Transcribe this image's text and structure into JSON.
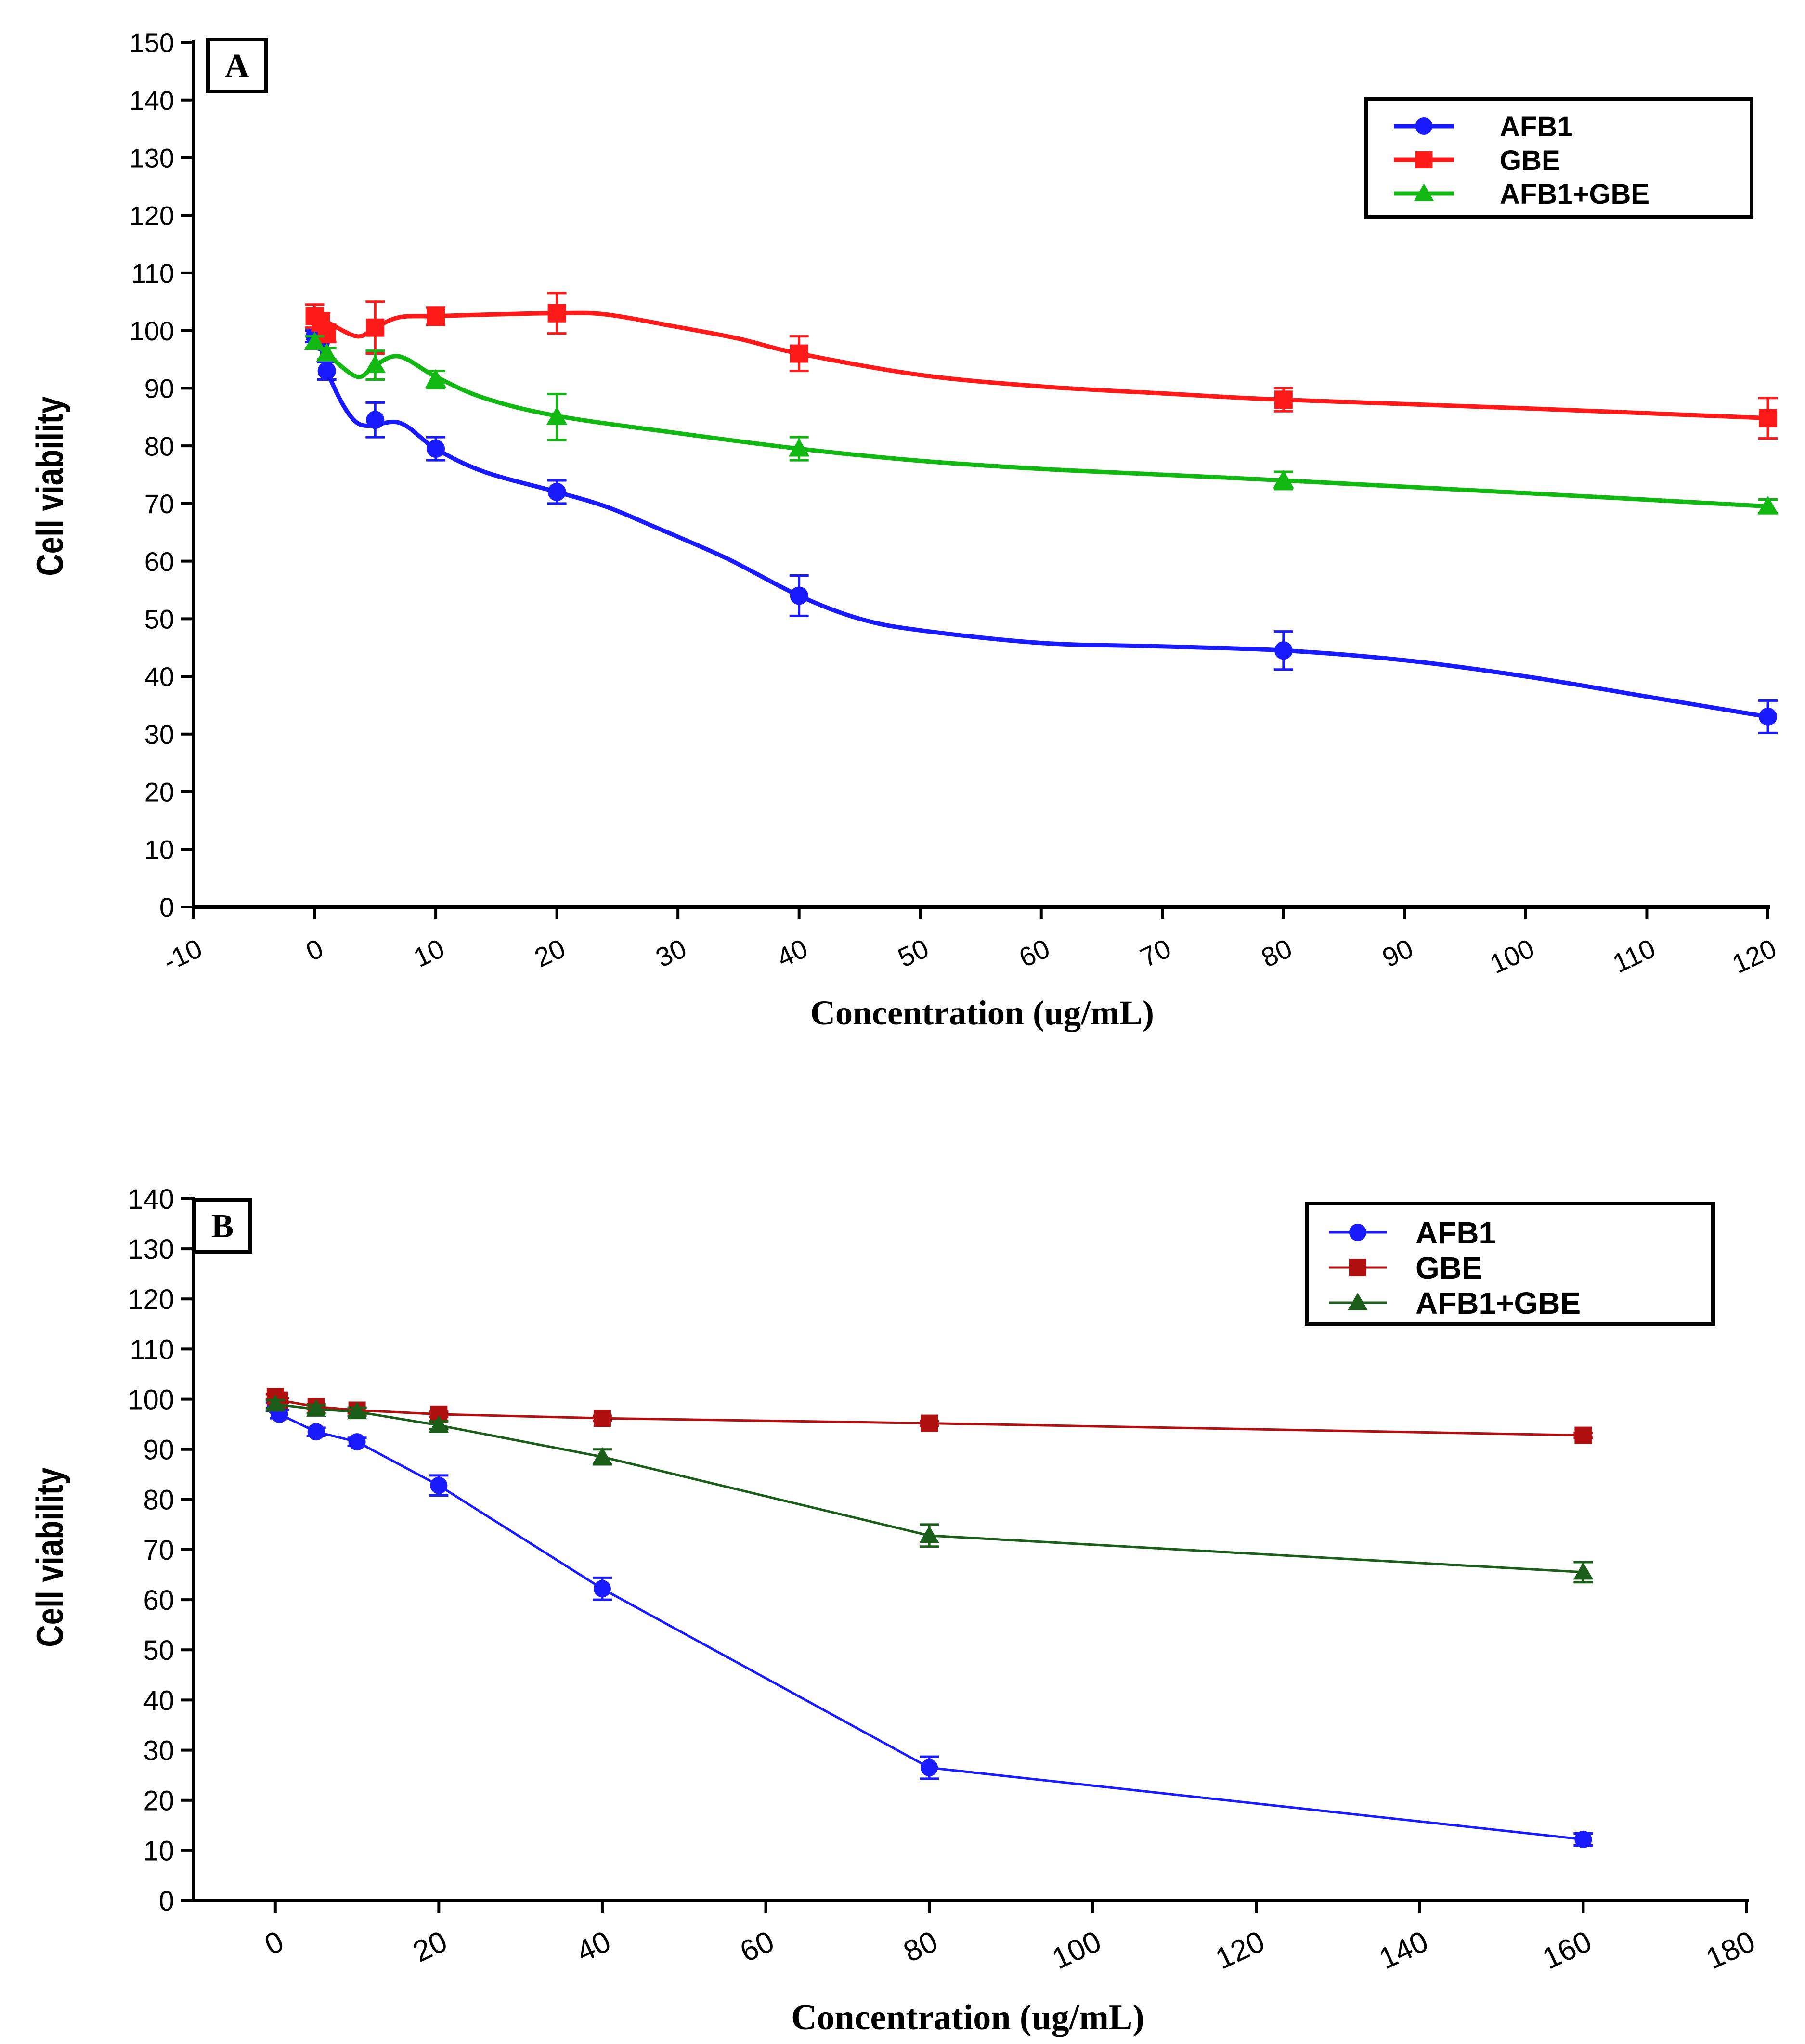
{
  "chart_data": [
    {
      "panel": "A",
      "type": "line",
      "xlabel": "Concentration (ug/mL)",
      "ylabel": "Cell viability",
      "xlim": [
        -10,
        120
      ],
      "ylim": [
        0,
        150
      ],
      "xticks": [
        -10,
        0,
        10,
        20,
        30,
        40,
        50,
        60,
        70,
        80,
        90,
        100,
        110,
        120
      ],
      "yticks": [
        0,
        10,
        20,
        30,
        40,
        50,
        60,
        70,
        80,
        90,
        100,
        110,
        120,
        130,
        140,
        150
      ],
      "legend_position": "top-right",
      "curve": "smooth",
      "series": [
        {
          "name": "AFB1",
          "color": "#1a1aff",
          "marker": "circle",
          "x": [
            0,
            0.5,
            1,
            5,
            10,
            20,
            40,
            80,
            120
          ],
          "y": [
            99,
            98,
            93,
            84.5,
            79.5,
            72,
            54,
            44.5,
            33
          ],
          "err": [
            1,
            1,
            1.5,
            3,
            2,
            2,
            3.5,
            3.3,
            2.8
          ],
          "fit": [
            [
              0,
              99
            ],
            [
              0.5,
              98
            ],
            [
              1,
              93
            ],
            [
              3.5,
              84
            ],
            [
              7,
              84
            ],
            [
              10,
              79.5
            ],
            [
              14,
              75.5
            ],
            [
              20,
              72
            ],
            [
              24,
              69.5
            ],
            [
              28,
              66
            ],
            [
              34,
              60.5
            ],
            [
              40,
              54
            ],
            [
              45,
              50
            ],
            [
              50,
              48
            ],
            [
              60,
              45.8
            ],
            [
              70,
              45.2
            ],
            [
              80,
              44.5
            ],
            [
              90,
              42.8
            ],
            [
              100,
              40
            ],
            [
              110,
              36.5
            ],
            [
              120,
              33
            ]
          ]
        },
        {
          "name": "GBE",
          "color": "#ff1a1a",
          "marker": "square",
          "x": [
            0,
            0.5,
            1,
            5,
            10,
            20,
            40,
            80,
            120
          ],
          "y": [
            102.5,
            101.5,
            99.5,
            100.5,
            102.5,
            103,
            96,
            88,
            84.8
          ],
          "err": [
            2,
            1.5,
            1.5,
            4.5,
            1.5,
            3.5,
            3,
            2,
            3.5
          ],
          "fit": [
            [
              0,
              102.5
            ],
            [
              1,
              101.5
            ],
            [
              3.5,
              99
            ],
            [
              5,
              100.5
            ],
            [
              7,
              102.3
            ],
            [
              10,
              102.5
            ],
            [
              15,
              102.8
            ],
            [
              20,
              103
            ],
            [
              24,
              102.8
            ],
            [
              30,
              100.6
            ],
            [
              35,
              98.6
            ],
            [
              40,
              96
            ],
            [
              50,
              92.3
            ],
            [
              60,
              90.3
            ],
            [
              70,
              89.1
            ],
            [
              80,
              88
            ],
            [
              100,
              86.5
            ],
            [
              120,
              84.8
            ]
          ]
        },
        {
          "name": "AFB1+GBE",
          "color": "#12b812",
          "marker": "triangle",
          "x": [
            0,
            1,
            5,
            10,
            20,
            40,
            80,
            120
          ],
          "y": [
            98,
            96,
            94,
            91.5,
            85,
            79.5,
            74,
            69.5
          ],
          "err": [
            1,
            1,
            2.5,
            1.5,
            4,
            2,
            1.5,
            1.2
          ],
          "fit": [
            [
              0,
              98
            ],
            [
              1,
              96
            ],
            [
              3.5,
              92
            ],
            [
              5,
              94
            ],
            [
              7,
              95.5
            ],
            [
              10,
              92
            ],
            [
              14,
              88.3
            ],
            [
              20,
              85.2
            ],
            [
              30,
              82.2
            ],
            [
              40,
              79.5
            ],
            [
              50,
              77.4
            ],
            [
              60,
              76
            ],
            [
              70,
              75
            ],
            [
              80,
              74
            ],
            [
              100,
              71.8
            ],
            [
              120,
              69.5
            ]
          ]
        }
      ]
    },
    {
      "panel": "B",
      "type": "line",
      "xlabel": "Concentration (ug/mL)",
      "ylabel": "Cell viability",
      "xlim": [
        -10,
        180
      ],
      "ylim": [
        0,
        140
      ],
      "xticks": [
        0,
        20,
        40,
        60,
        80,
        100,
        120,
        140,
        160,
        180
      ],
      "yticks": [
        0,
        10,
        20,
        30,
        40,
        50,
        60,
        70,
        80,
        90,
        100,
        110,
        120,
        130,
        140
      ],
      "legend_position": "top-right",
      "curve": "straight",
      "series": [
        {
          "name": "AFB1",
          "color": "#1a1aff",
          "marker": "circle",
          "x": [
            0,
            0.5,
            5,
            10,
            20,
            40,
            80,
            160
          ],
          "y": [
            98.5,
            97,
            93.5,
            91.5,
            82.8,
            62.2,
            26.5,
            12.2
          ],
          "err": [
            0.8,
            0.8,
            0.8,
            0.8,
            2,
            2.2,
            2.2,
            1.2
          ]
        },
        {
          "name": "GBE",
          "color": "#b01010",
          "marker": "square",
          "x": [
            0,
            0.5,
            5,
            10,
            20,
            40,
            80,
            160
          ],
          "y": [
            100.5,
            99.8,
            98.5,
            97.8,
            97,
            96.2,
            95.2,
            92.8
          ],
          "err": [
            0.5,
            0.5,
            0.5,
            0.5,
            0.5,
            0.5,
            0.5,
            0.5
          ]
        },
        {
          "name": "AFB1+GBE",
          "color": "#1a5e1a",
          "marker": "triangle",
          "x": [
            0,
            5,
            10,
            20,
            40,
            80,
            160
          ],
          "y": [
            99,
            98,
            97.5,
            94.8,
            88.5,
            72.8,
            65.5
          ],
          "err": [
            0.8,
            0.8,
            0.8,
            0.8,
            1.5,
            2.2,
            2
          ]
        }
      ]
    }
  ]
}
